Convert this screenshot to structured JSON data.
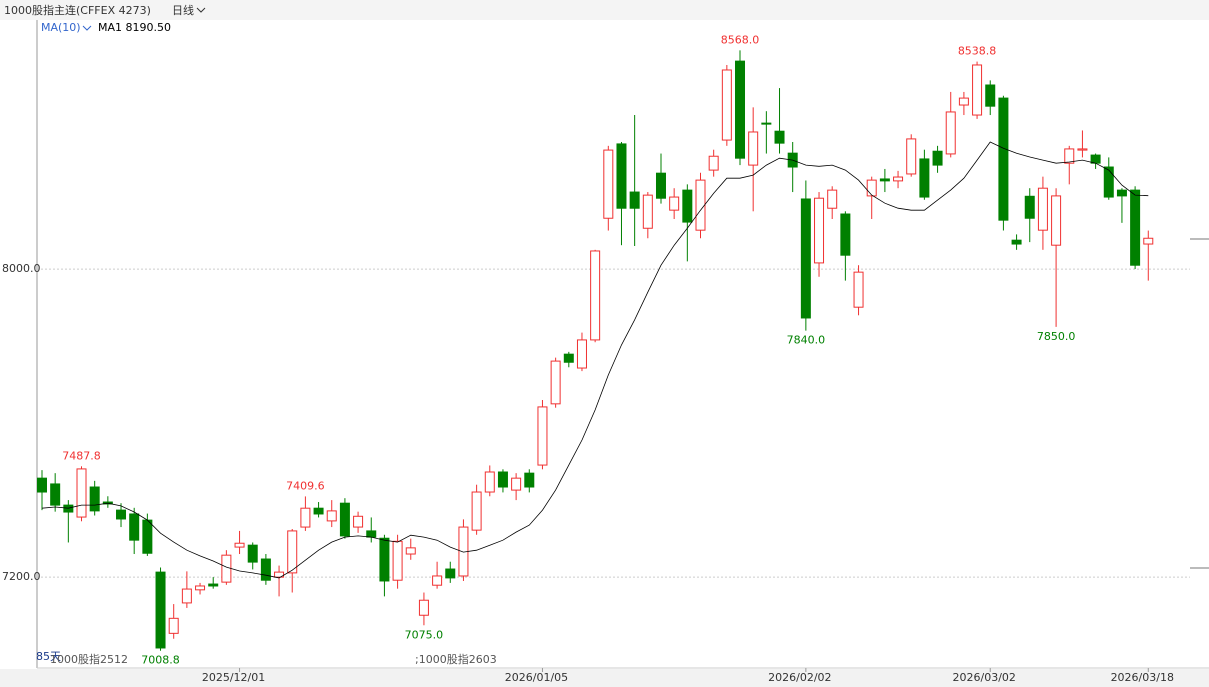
{
  "header": {
    "symbol": "1000股指主连(CFFEX 4273)",
    "period": "日线"
  },
  "footer": {
    "days": "85天",
    "contract_1": "1000股指2512",
    "contract_2": ";1000股指2603"
  },
  "chart_data": {
    "type": "candlestick",
    "ylim": [
      6964,
      8652
    ],
    "yticks": [
      {
        "value": 7200,
        "label": "7200.0"
      },
      {
        "value": 8000,
        "label": "8000.0"
      }
    ],
    "grid": true,
    "up_color": "#f03030",
    "down_color": "#008000",
    "categories": [
      null,
      null,
      null,
      null,
      null,
      null,
      null,
      null,
      null,
      null,
      null,
      null,
      null,
      null,
      null,
      "2025/12/01",
      null,
      null,
      null,
      null,
      null,
      null,
      null,
      null,
      null,
      null,
      null,
      null,
      null,
      null,
      null,
      null,
      null,
      null,
      null,
      null,
      null,
      null,
      "2026/01/05",
      null,
      null,
      null,
      null,
      null,
      null,
      null,
      null,
      null,
      null,
      null,
      null,
      null,
      null,
      null,
      null,
      null,
      null,
      null,
      "2026/02/02",
      null,
      null,
      null,
      null,
      null,
      null,
      null,
      null,
      null,
      null,
      null,
      null,
      null,
      "2026/03/02",
      null,
      null,
      null,
      null,
      null,
      null,
      null,
      null,
      null,
      null,
      null,
      "2026/03/18"
    ],
    "open": [
      7457,
      7442,
      7387,
      7356,
      7434,
      7395,
      7374,
      7364,
      7348,
      7213,
      7054,
      7133,
      7167,
      7182,
      7187,
      7278,
      7283,
      7247,
      7200,
      7211,
      7330,
      7379,
      7346,
      7392,
      7330,
      7320,
      7301,
      7192,
      7260,
      7101,
      7179,
      7221,
      7203,
      7322,
      7421,
      7473,
      7426,
      7470,
      7491,
      7650,
      7779,
      7743,
      7816,
      8132,
      8325,
      8200,
      8106,
      8249,
      8153,
      8205,
      8101,
      8257,
      8335,
      8540,
      8270,
      8379,
      8358,
      8301,
      8182,
      8016,
      8158,
      8143,
      7901,
      8190,
      8234,
      8229,
      8247,
      8286,
      8306,
      8299,
      8426,
      8400,
      8478,
      8444,
      8075,
      8189,
      8101,
      8062,
      8275,
      8309,
      8296,
      8265,
      8205,
      8205,
      8065
    ],
    "high": [
      7478,
      7470,
      7400,
      7487.8,
      7450,
      7410,
      7392,
      7380,
      7365,
      7225,
      7130,
      7215,
      7185,
      7200,
      7270,
      7320,
      7290,
      7260,
      7230,
      7325,
      7409.6,
      7395,
      7400,
      7405,
      7370,
      7355,
      7310,
      7310,
      7300,
      7160,
      7240,
      7240,
      7350,
      7440,
      7490,
      7480,
      7470,
      7480,
      7660,
      7770,
      7785,
      7835,
      8050,
      8320,
      8330,
      8400,
      8200,
      8300,
      8210,
      8220,
      8250,
      8310,
      8530,
      8568,
      8420,
      8410,
      8470,
      8330,
      8230,
      8200,
      8215,
      8150,
      8010,
      8240,
      8260,
      8255,
      8350,
      8310,
      8320,
      8460,
      8460,
      8538.8,
      8490,
      8450,
      8090,
      8210,
      8240,
      8210,
      8320,
      8360,
      8300,
      8290,
      8210,
      8215,
      8100
    ],
    "low": [
      7374,
      7370,
      7290,
      7345,
      7360,
      7380,
      7330,
      7260,
      7255,
      7008.8,
      7040,
      7120,
      7155,
      7170,
      7180,
      7260,
      7220,
      7180,
      7150,
      7160,
      7320,
      7355,
      7330,
      7300,
      7315,
      7290,
      7150,
      7170,
      7245,
      7075,
      7170,
      7185,
      7190,
      7310,
      7410,
      7420,
      7400,
      7420,
      7480,
      7640,
      7745,
      7735,
      7810,
      8100,
      8062,
      8060,
      8080,
      8170,
      8130,
      8020,
      8080,
      8240,
      8320,
      8270,
      8150,
      8300,
      8300,
      8200,
      7840,
      7980,
      8130,
      7970,
      7880,
      8130,
      8200,
      8210,
      8240,
      8180,
      8250,
      8290,
      8400,
      8390,
      8400,
      8100,
      8050,
      8070,
      8050,
      7850,
      8220,
      8290,
      8260,
      8180,
      8120,
      8000,
      7970
    ],
    "close": [
      7421,
      7387,
      7369,
      7481,
      7372,
      7390,
      7351,
      7296,
      7262,
      7016,
      7093,
      7169,
      7177,
      7177,
      7257,
      7288,
      7239,
      7192,
      7213,
      7320,
      7379,
      7364,
      7372,
      7307,
      7358,
      7304,
      7190,
      7293,
      7276,
      7140,
      7203,
      7198,
      7330,
      7421,
      7473,
      7434,
      7457,
      7434,
      7642,
      7761,
      7758,
      7816,
      8047,
      8309,
      8158,
      8158,
      8192,
      8184,
      8187,
      8122,
      8231,
      8293,
      8517,
      8288,
      8356,
      8377,
      8327,
      8265,
      7873,
      8184,
      8205,
      8036,
      7992,
      8231,
      8229,
      8239,
      8338,
      8187,
      8270,
      8408,
      8444,
      8530,
      8423,
      8127,
      8065,
      8132,
      8210,
      8190,
      8312,
      8312,
      8275,
      8187,
      8190,
      8010,
      8080
    ],
    "ma": {
      "name": "MA(10)",
      "label": "MA1 8190.50",
      "color": "#000000",
      "values": [
        7379,
        7382,
        7379,
        7387,
        7387,
        7392,
        7385,
        7369,
        7348,
        7314,
        7291,
        7270,
        7255,
        7242,
        7226,
        7216,
        7211,
        7205,
        7198,
        7218,
        7244,
        7270,
        7291,
        7304,
        7307,
        7304,
        7296,
        7291,
        7309,
        7304,
        7296,
        7278,
        7265,
        7270,
        7283,
        7296,
        7317,
        7335,
        7374,
        7426,
        7491,
        7556,
        7634,
        7725,
        7803,
        7868,
        7940,
        8010,
        8062,
        8106,
        8153,
        8197,
        8236,
        8236,
        8244,
        8270,
        8288,
        8283,
        8270,
        8267,
        8270,
        8257,
        8231,
        8192,
        8171,
        8158,
        8153,
        8153,
        8179,
        8205,
        8236,
        8283,
        8330,
        8314,
        8301,
        8291,
        8283,
        8275,
        8278,
        8283,
        8275,
        8257,
        8218,
        8192,
        8190.5
      ]
    },
    "annotations": [
      {
        "index": 3,
        "value": 7487.8,
        "label": "7487.8"
      },
      {
        "index": 9,
        "value": 7008.8,
        "label": "7008.8"
      },
      {
        "index": 20,
        "value": 7409.6,
        "label": "7409.6"
      },
      {
        "index": 29,
        "value": 7075,
        "label": "7075.0"
      },
      {
        "index": 53,
        "value": 8568,
        "label": "8568.0"
      },
      {
        "index": 58,
        "value": 7840,
        "label": "7840.0"
      },
      {
        "index": 71,
        "value": 8538.8,
        "label": "8538.8"
      },
      {
        "index": 77,
        "value": 7850,
        "label": "7850.0"
      }
    ]
  }
}
